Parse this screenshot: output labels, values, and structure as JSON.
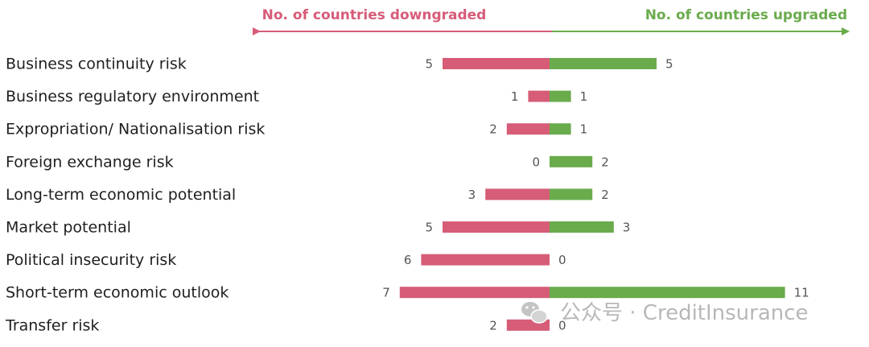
{
  "colors": {
    "downgrade": "#d65c78",
    "upgrade": "#6aab4c",
    "category_text": "#1f1f1f",
    "value_text": "#555555",
    "watermark": "#b8b8b8"
  },
  "header": {
    "downgraded": "No. of countries downgraded",
    "upgraded": "No. of countries upgraded"
  },
  "watermark": {
    "text": "公众号 · CreditInsurance",
    "icon": "wechat-icon"
  },
  "chart_data": {
    "type": "bar",
    "orientation": "horizontal-diverging",
    "categories": [
      "Business continuity risk",
      "Business regulatory environment",
      "Expropriation/ Nationalisation risk",
      "Foreign exchange risk",
      "Long-term economic potential",
      "Market potential",
      "Political insecurity risk",
      "Short-term economic outlook",
      "Transfer risk"
    ],
    "series": [
      {
        "name": "No. of countries downgraded",
        "values": [
          5,
          1,
          2,
          0,
          3,
          5,
          6,
          7,
          2
        ]
      },
      {
        "name": "No. of countries upgraded",
        "values": [
          5,
          1,
          1,
          2,
          2,
          3,
          0,
          11,
          0
        ]
      }
    ],
    "title": "",
    "xlabel": "",
    "ylabel": "",
    "grid": false
  }
}
